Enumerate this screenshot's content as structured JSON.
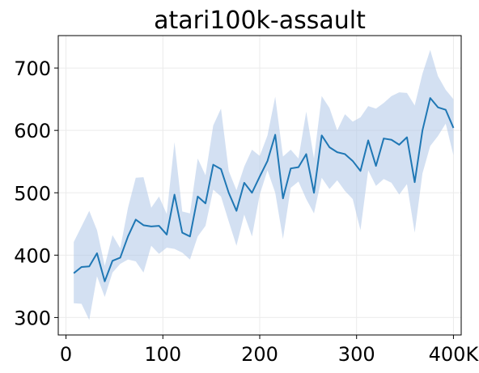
{
  "chart_data": {
    "type": "line",
    "title": "atari100k-assault",
    "xlabel": "",
    "ylabel": "",
    "xlim": [
      -8,
      408
    ],
    "ylim": [
      272,
      752
    ],
    "grid": true,
    "x_ticks": [
      {
        "value": 0,
        "label": "0"
      },
      {
        "value": 100,
        "label": "100"
      },
      {
        "value": 200,
        "label": "200"
      },
      {
        "value": 300,
        "label": "300"
      },
      {
        "value": 400,
        "label": "400K"
      }
    ],
    "y_ticks": [
      {
        "value": 300,
        "label": "300"
      },
      {
        "value": 400,
        "label": "400"
      },
      {
        "value": 500,
        "label": "500"
      },
      {
        "value": 600,
        "label": "600"
      },
      {
        "value": 700,
        "label": "700"
      }
    ],
    "colors": {
      "line": "#1f77b4",
      "band": "#aec7e8"
    },
    "series": [
      {
        "x": [
          8,
          16,
          24,
          32,
          40,
          48,
          56,
          64,
          72,
          80,
          88,
          96,
          104,
          112,
          120,
          128,
          136,
          144,
          152,
          160,
          168,
          176,
          184,
          192,
          200,
          208,
          216,
          224,
          232,
          240,
          248,
          256,
          264,
          272,
          280,
          288,
          296,
          304,
          312,
          320,
          328,
          336,
          344,
          352,
          360,
          368,
          376,
          384,
          392,
          400
        ],
        "y": [
          371,
          381,
          382,
          403,
          358,
          391,
          396,
          430,
          457,
          448,
          446,
          447,
          433,
          497,
          436,
          430,
          494,
          483,
          545,
          538,
          500,
          471,
          516,
          500,
          526,
          551,
          593,
          491,
          539,
          541,
          562,
          500,
          592,
          573,
          565,
          562,
          551,
          535,
          584,
          543,
          587,
          585,
          577,
          589,
          517,
          600,
          652,
          637,
          633,
          604
        ],
        "lower": [
          323,
          322,
          296,
          366,
          333,
          372,
          386,
          393,
          390,
          372,
          415,
          402,
          412,
          410,
          404,
          393,
          430,
          447,
          505,
          494,
          454,
          415,
          465,
          430,
          497,
          536,
          500,
          426,
          508,
          518,
          490,
          467,
          524,
          506,
          520,
          503,
          490,
          440,
          536,
          511,
          522,
          516,
          497,
          514,
          436,
          531,
          575,
          591,
          611,
          560
        ],
        "upper": [
          421,
          446,
          471,
          440,
          383,
          432,
          411,
          476,
          524,
          525,
          476,
          494,
          466,
          581,
          470,
          467,
          555,
          528,
          608,
          635,
          535,
          504,
          542,
          569,
          559,
          592,
          654,
          558,
          569,
          555,
          630,
          555,
          655,
          636,
          600,
          626,
          614,
          621,
          639,
          635,
          644,
          655,
          661,
          660,
          640,
          691,
          729,
          687,
          665,
          650
        ]
      }
    ]
  }
}
